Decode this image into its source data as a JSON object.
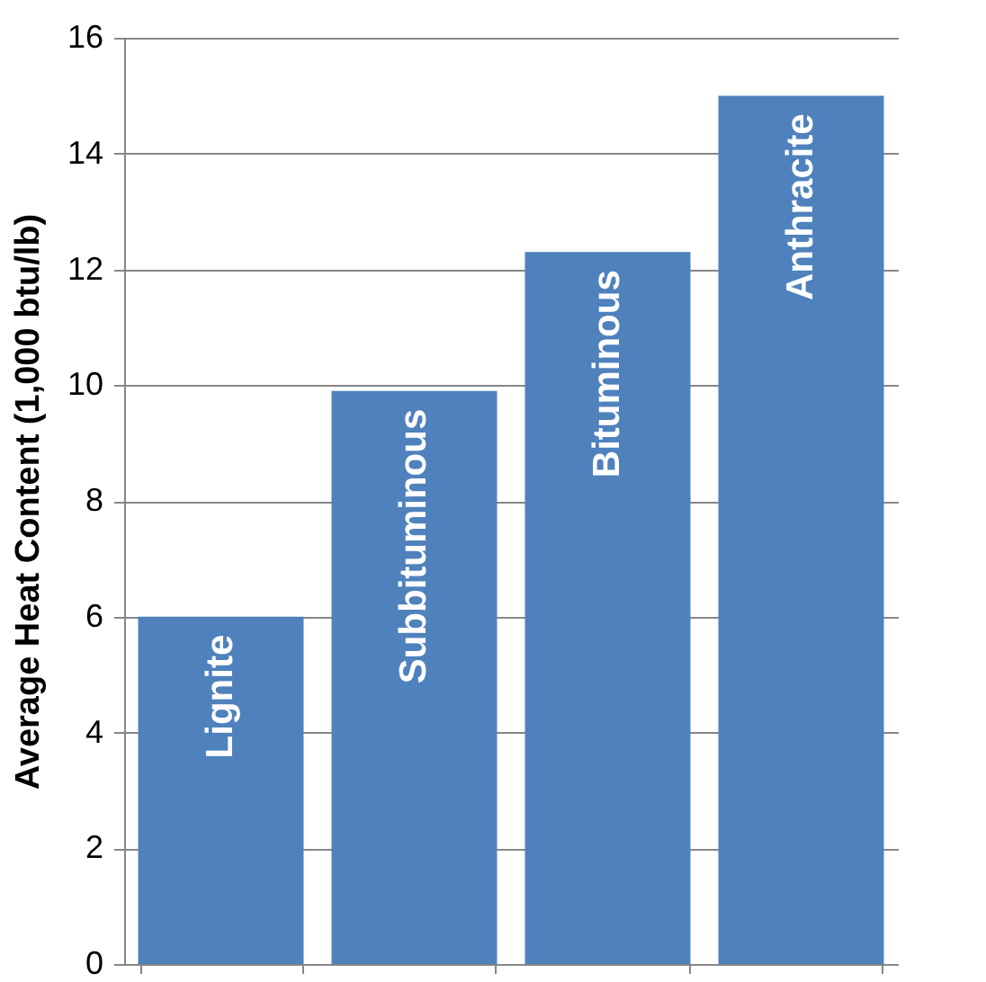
{
  "chart_data": {
    "type": "bar",
    "categories": [
      "Lignite",
      "Subbituminous",
      "Bituminous",
      "Anthracite"
    ],
    "values": [
      6.0,
      9.9,
      12.3,
      15.0
    ],
    "color": "#4f81bd",
    "ylabel": "Average Heat Content (1,000 btu/lb)",
    "ylim": [
      0,
      16
    ],
    "yticks": [
      0,
      2,
      4,
      6,
      8,
      10,
      12,
      14,
      16
    ],
    "grid": "y",
    "tick_labels": "y"
  }
}
